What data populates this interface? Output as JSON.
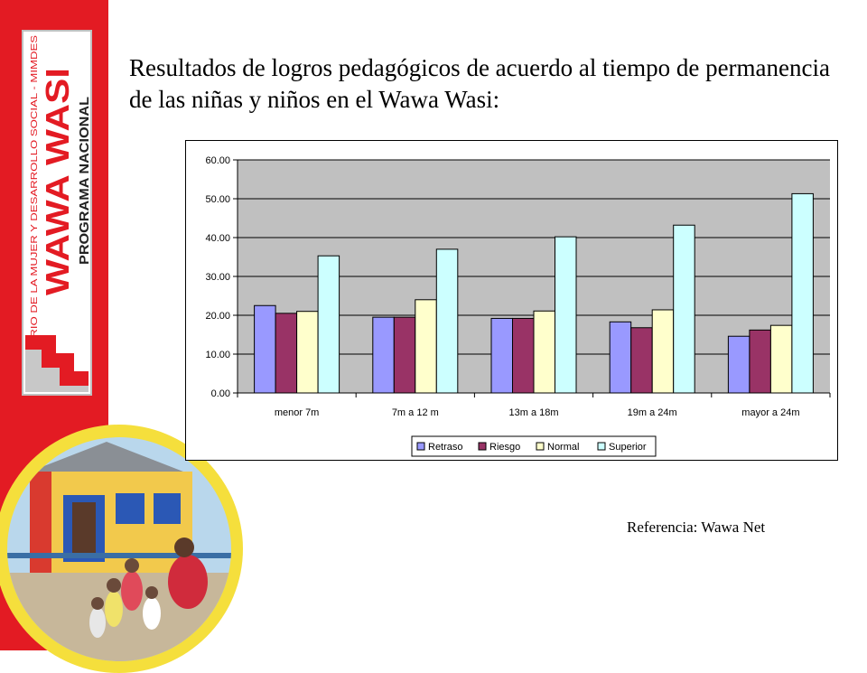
{
  "branding": {
    "ministry": "MINISTERIO DE LA MUJER Y DESARROLLO SOCIAL - MIMDES",
    "program_name": "WAWA WASI",
    "program_subtitle": "PROGRAMA NACIONAL",
    "colors": {
      "red": "#e31b23",
      "yellow": "#f5df3c"
    }
  },
  "title": "Resultados de logros pedagógicos de acuerdo al tiempo de permanencia de las niñas y niños en el Wawa Wasi:",
  "reference": "Referencia:  Wawa Net",
  "chart_data": {
    "type": "bar",
    "categories": [
      "menor 7m",
      "7m a 12 m",
      "13m a 18m",
      "19m a 24m",
      "mayor a 24m"
    ],
    "series": [
      {
        "name": "Retraso",
        "color": "#9999ff",
        "values": [
          22.5,
          19.5,
          19.2,
          18.3,
          14.6
        ]
      },
      {
        "name": "Riesgo",
        "color": "#993366",
        "values": [
          20.5,
          19.5,
          19.2,
          16.8,
          16.2
        ]
      },
      {
        "name": "Normal",
        "color": "#ffffcc",
        "values": [
          21.0,
          24.0,
          21.1,
          21.4,
          17.4
        ]
      },
      {
        "name": "Superior",
        "color": "#ccffff",
        "values": [
          35.3,
          37.0,
          40.2,
          43.2,
          51.3
        ]
      }
    ],
    "y_ticks": [
      "0.00",
      "10.00",
      "20.00",
      "30.00",
      "40.00",
      "50.00",
      "60.00"
    ],
    "ylim": [
      0,
      60
    ],
    "grid": true,
    "legend": "bottom",
    "title": "",
    "xlabel": "",
    "ylabel": ""
  }
}
